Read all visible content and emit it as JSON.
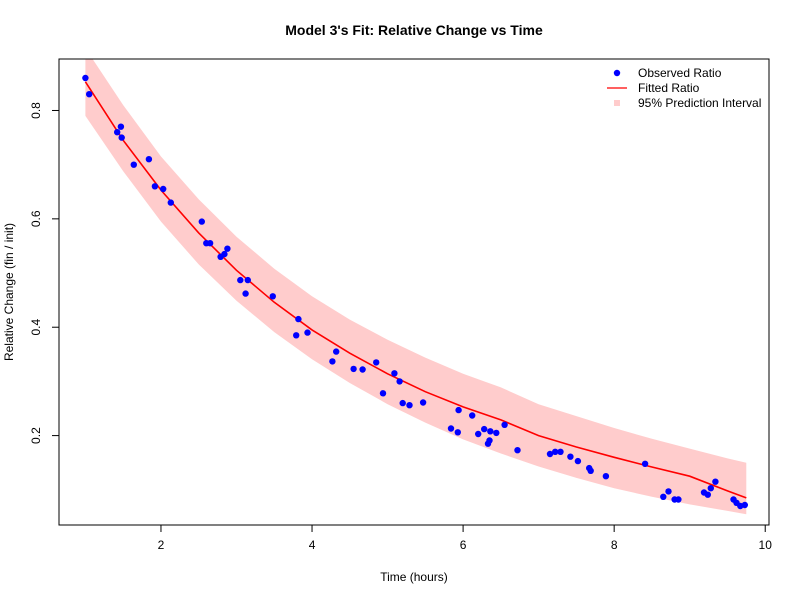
{
  "chart_data": {
    "type": "scatter",
    "title": "Model 3's Fit: Relative Change vs Time",
    "xlabel": "Time (hours)",
    "ylabel": "Relative Change (fin / init)",
    "xlim": [
      0.65,
      10.05
    ],
    "ylim": [
      0.035,
      0.895
    ],
    "x_ticks": [
      2,
      4,
      6,
      8,
      10
    ],
    "y_ticks": [
      0.2,
      0.4,
      0.6,
      0.8
    ],
    "legend_position": "top-right",
    "grid": false,
    "colors": {
      "observed": "#0000ff",
      "fitted": "#ff0000",
      "interval": "#ffcccc",
      "frame": "#000000"
    },
    "legend": [
      {
        "label": "Observed Ratio",
        "kind": "point"
      },
      {
        "label": "Fitted Ratio",
        "kind": "line"
      },
      {
        "label": "95% Prediction Interval",
        "kind": "square"
      }
    ],
    "series": [
      {
        "name": "Observed Ratio",
        "kind": "points",
        "x": [
          1.0,
          1.05,
          1.42,
          1.47,
          1.48,
          1.64,
          1.84,
          1.92,
          2.03,
          2.13,
          2.54,
          2.6,
          2.65,
          2.79,
          2.84,
          2.88,
          3.05,
          3.12,
          3.15,
          3.48,
          3.79,
          3.82,
          3.94,
          4.27,
          4.32,
          4.55,
          4.67,
          4.85,
          4.94,
          5.09,
          5.16,
          5.2,
          5.29,
          5.47,
          5.84,
          5.93,
          5.94,
          6.12,
          6.2,
          6.28,
          6.33,
          6.35,
          6.36,
          6.44,
          6.55,
          6.72,
          7.15,
          7.22,
          7.29,
          7.42,
          7.52,
          7.67,
          7.69,
          7.89,
          8.41,
          8.65,
          8.72,
          8.8,
          8.85,
          9.19,
          9.24,
          9.28,
          9.34,
          9.58,
          9.62,
          9.67,
          9.73
        ],
        "y": [
          0.86,
          0.83,
          0.76,
          0.77,
          0.75,
          0.7,
          0.71,
          0.66,
          0.655,
          0.63,
          0.595,
          0.555,
          0.555,
          0.53,
          0.535,
          0.545,
          0.487,
          0.462,
          0.487,
          0.457,
          0.385,
          0.415,
          0.39,
          0.337,
          0.355,
          0.323,
          0.322,
          0.335,
          0.278,
          0.315,
          0.3,
          0.26,
          0.256,
          0.261,
          0.213,
          0.206,
          0.247,
          0.237,
          0.203,
          0.212,
          0.185,
          0.191,
          0.208,
          0.205,
          0.22,
          0.173,
          0.166,
          0.17,
          0.17,
          0.161,
          0.153,
          0.14,
          0.135,
          0.125,
          0.148,
          0.087,
          0.097,
          0.082,
          0.082,
          0.095,
          0.091,
          0.103,
          0.115,
          0.082,
          0.076,
          0.07,
          0.072
        ]
      },
      {
        "name": "Fitted Ratio",
        "kind": "line",
        "x": [
          1.0,
          1.5,
          2.0,
          2.5,
          3.0,
          3.5,
          4.0,
          4.5,
          5.0,
          5.5,
          6.0,
          6.5,
          7.0,
          7.5,
          8.0,
          8.5,
          9.0,
          9.5,
          9.75
        ],
        "y": [
          0.853,
          0.745,
          0.653,
          0.574,
          0.505,
          0.446,
          0.395,
          0.352,
          0.314,
          0.281,
          0.253,
          0.229,
          0.2,
          0.179,
          0.16,
          0.142,
          0.125,
          0.098,
          0.085
        ]
      },
      {
        "name": "95% Prediction Interval",
        "kind": "band",
        "x": [
          1.0,
          1.5,
          2.0,
          2.5,
          3.0,
          3.5,
          4.0,
          4.5,
          5.0,
          5.5,
          6.0,
          6.5,
          7.0,
          7.5,
          8.0,
          8.5,
          9.0,
          9.5,
          9.75
        ],
        "lower": [
          0.79,
          0.688,
          0.595,
          0.516,
          0.449,
          0.391,
          0.341,
          0.297,
          0.258,
          0.224,
          0.193,
          0.167,
          0.143,
          0.122,
          0.103,
          0.087,
          0.073,
          0.061,
          0.055
        ],
        "upper": [
          0.915,
          0.81,
          0.715,
          0.636,
          0.567,
          0.508,
          0.457,
          0.414,
          0.377,
          0.344,
          0.314,
          0.289,
          0.258,
          0.236,
          0.214,
          0.194,
          0.176,
          0.158,
          0.15
        ]
      }
    ]
  }
}
